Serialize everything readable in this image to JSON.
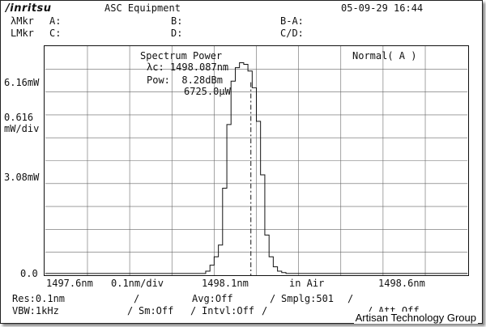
{
  "header": {
    "brand": "/inritsu",
    "instrument": "ASC Equipment",
    "datetime": "05-09-29 16:44"
  },
  "markers": {
    "row1": {
      "label": "λMkr",
      "a": "A:",
      "b": "B:",
      "ba": "B-A:"
    },
    "row2": {
      "label": "LMkr",
      "c": "C:",
      "d": "D:",
      "cd": "C/D:"
    }
  },
  "y_axis": {
    "top": "6.16mW",
    "scale_value": "0.616",
    "scale_unit": "mW/div",
    "mid": "3.08mW",
    "bottom": "0.0"
  },
  "plot_overlay": {
    "analysis_title": "Spectrum Power",
    "wavelength": "λc: 1498.087nm",
    "power": "Pow:  8.28dBm",
    "power_mw": "6725.0μW",
    "mode": "Normal( A )"
  },
  "x_axis": {
    "start": "1497.6nm",
    "span": "0.1nm/div",
    "center": "1498.1nm",
    "medium": "in Air",
    "stop": "1498.6nm"
  },
  "footer": {
    "res": "Res:0.1nm",
    "avg": "Avg:Off",
    "smplg": "Smplg:501",
    "vbw": "VBW:1kHz",
    "sm": "Sm:Off",
    "intvl": "Intvl:Off",
    "att": "Att Off",
    "sep": "/"
  },
  "watermark": "Artisan Technology Group",
  "chart_data": {
    "type": "line",
    "xlim": [
      1497.6,
      1498.6
    ],
    "ylim": [
      0,
      6.16
    ],
    "x": [
      1497.6,
      1497.98,
      1497.99,
      1498.0,
      1498.01,
      1498.02,
      1498.03,
      1498.04,
      1498.05,
      1498.06,
      1498.07,
      1498.08,
      1498.09,
      1498.1,
      1498.11,
      1498.12,
      1498.13,
      1498.14,
      1498.15,
      1498.16,
      1498.17,
      1498.2,
      1498.6
    ],
    "y": [
      0.05,
      0.12,
      0.3,
      0.55,
      0.9,
      2.6,
      4.5,
      5.8,
      6.2,
      6.35,
      6.3,
      6.1,
      5.6,
      4.6,
      3.0,
      1.2,
      0.55,
      0.25,
      0.12,
      0.08,
      0.05,
      0.05,
      0.05
    ],
    "center_marker": 1498.087,
    "grid": true
  }
}
